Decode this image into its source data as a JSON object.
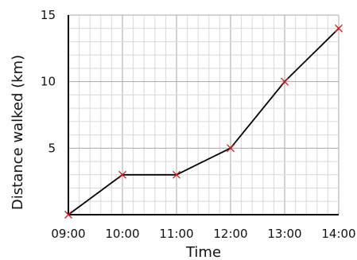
{
  "chart_data": {
    "type": "line",
    "xlabel": "Time",
    "ylabel": "Distance walked (km)",
    "x": [
      "09:00",
      "10:00",
      "11:00",
      "12:00",
      "13:00",
      "14:00"
    ],
    "y": [
      0,
      3,
      3,
      5,
      10,
      14
    ],
    "ylim": [
      0,
      15
    ],
    "yticks": [
      5,
      10,
      15
    ],
    "grid": true,
    "line_color": "#000000",
    "marker_color": "#d01c1c",
    "marker": "x"
  }
}
